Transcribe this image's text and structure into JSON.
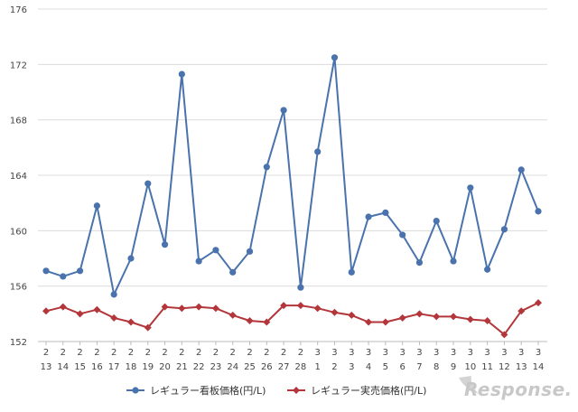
{
  "chart_data": {
    "type": "line",
    "title": "",
    "xlabel": "",
    "ylabel": "",
    "ylim": [
      152,
      176
    ],
    "yticks": [
      152,
      156,
      160,
      164,
      168,
      172,
      176
    ],
    "grid": "horizontal",
    "legend_position": "bottom",
    "categories": [
      {
        "m": "2",
        "d": "13"
      },
      {
        "m": "2",
        "d": "14"
      },
      {
        "m": "2",
        "d": "15"
      },
      {
        "m": "2",
        "d": "16"
      },
      {
        "m": "2",
        "d": "17"
      },
      {
        "m": "2",
        "d": "18"
      },
      {
        "m": "2",
        "d": "19"
      },
      {
        "m": "2",
        "d": "20"
      },
      {
        "m": "2",
        "d": "21"
      },
      {
        "m": "2",
        "d": "22"
      },
      {
        "m": "2",
        "d": "23"
      },
      {
        "m": "2",
        "d": "24"
      },
      {
        "m": "2",
        "d": "25"
      },
      {
        "m": "2",
        "d": "26"
      },
      {
        "m": "2",
        "d": "27"
      },
      {
        "m": "2",
        "d": "28"
      },
      {
        "m": "3",
        "d": "1"
      },
      {
        "m": "3",
        "d": "2"
      },
      {
        "m": "3",
        "d": "3"
      },
      {
        "m": "3",
        "d": "4"
      },
      {
        "m": "3",
        "d": "5"
      },
      {
        "m": "3",
        "d": "6"
      },
      {
        "m": "3",
        "d": "7"
      },
      {
        "m": "3",
        "d": "8"
      },
      {
        "m": "3",
        "d": "9"
      },
      {
        "m": "3",
        "d": "10"
      },
      {
        "m": "3",
        "d": "11"
      },
      {
        "m": "3",
        "d": "12"
      },
      {
        "m": "3",
        "d": "13"
      },
      {
        "m": "3",
        "d": "14"
      }
    ],
    "series": [
      {
        "name": "レギュラー看板価格(円/L)",
        "color": "#4a72ac",
        "marker": "circle",
        "values": [
          157.1,
          156.7,
          157.1,
          161.8,
          155.4,
          158.0,
          163.4,
          159.0,
          171.3,
          157.8,
          158.6,
          157.0,
          158.5,
          164.6,
          168.7,
          155.9,
          165.7,
          172.5,
          157.0,
          161.0,
          161.3,
          159.7,
          157.7,
          160.7,
          157.8,
          163.1,
          157.2,
          160.1,
          164.4,
          161.4
        ]
      },
      {
        "name": "レギュラー実売価格(円/L)",
        "color": "#b2363a",
        "marker": "diamond",
        "values": [
          154.2,
          154.5,
          154.0,
          154.3,
          153.7,
          153.4,
          153.0,
          154.5,
          154.4,
          154.5,
          154.4,
          153.9,
          153.5,
          153.4,
          154.6,
          154.6,
          154.4,
          154.1,
          153.9,
          153.4,
          153.4,
          153.7,
          154.0,
          153.8,
          153.8,
          153.6,
          153.5,
          152.5,
          154.2,
          154.8
        ]
      }
    ]
  },
  "watermark": {
    "logo_text": "Response."
  }
}
